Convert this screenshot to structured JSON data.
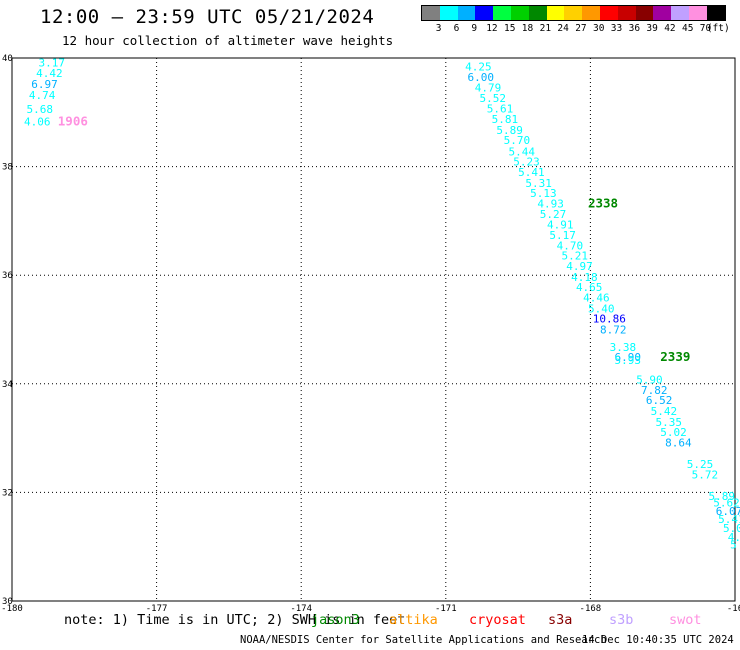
{
  "header": {
    "title": "12:00 – 23:59 UTC 05/21/2024",
    "subtitle": "12 hour collection of altimeter wave heights"
  },
  "color_scale": {
    "colors": [
      "#808080",
      "#00ffff",
      "#00b0ff",
      "#0000ff",
      "#00ff40",
      "#00d000",
      "#008800",
      "#ffff00",
      "#ffd000",
      "#ff9800",
      "#ff0000",
      "#c80000",
      "#880000",
      "#a000a0",
      "#c0a0ff",
      "#ff90e0",
      "#000000"
    ],
    "labels": [
      "3",
      "6",
      "9",
      "12",
      "15",
      "18",
      "21",
      "24",
      "27",
      "30",
      "33",
      "36",
      "39",
      "42",
      "45",
      "70",
      "(ft)"
    ]
  },
  "chart_data": {
    "type": "map",
    "x_axis": {
      "range": [
        -180,
        -165
      ],
      "ticks": [
        "-180",
        "-177",
        "-174",
        "-171",
        "-168",
        "-16"
      ]
    },
    "y_axis": {
      "range": [
        30,
        40
      ],
      "ticks": [
        "30",
        "32",
        "34",
        "36",
        "38",
        "40"
      ]
    },
    "grid": true,
    "wave_height_labels": [
      {
        "lon": -179.45,
        "lat": 39.92,
        "text": "3.17",
        "color": "#00ffff"
      },
      {
        "lon": -179.5,
        "lat": 39.72,
        "text": "4.42",
        "color": "#00ffff"
      },
      {
        "lon": -179.6,
        "lat": 39.52,
        "text": "6.97",
        "color": "#00b0ff"
      },
      {
        "lon": -179.65,
        "lat": 39.32,
        "text": "4.74",
        "color": "#00ffff"
      },
      {
        "lon": -179.7,
        "lat": 39.06,
        "text": "5.68",
        "color": "#00ffff"
      },
      {
        "lon": -179.75,
        "lat": 38.83,
        "text": "4.06",
        "color": "#00ffff"
      },
      {
        "lon": -179.05,
        "lat": 38.83,
        "text": "1906",
        "color": "#ff90e0",
        "pass": true
      },
      {
        "lon": -170.6,
        "lat": 39.84,
        "text": "4.25",
        "color": "#00ffff"
      },
      {
        "lon": -170.55,
        "lat": 39.65,
        "text": "6.00",
        "color": "#00b0ff"
      },
      {
        "lon": -170.4,
        "lat": 39.46,
        "text": "4.79",
        "color": "#00ffff"
      },
      {
        "lon": -170.3,
        "lat": 39.26,
        "text": "5.52",
        "color": "#00ffff"
      },
      {
        "lon": -170.15,
        "lat": 39.07,
        "text": "5.61",
        "color": "#00ffff"
      },
      {
        "lon": -170.05,
        "lat": 38.88,
        "text": "5.81",
        "color": "#00ffff"
      },
      {
        "lon": -169.95,
        "lat": 38.67,
        "text": "5.89",
        "color": "#00ffff"
      },
      {
        "lon": -169.8,
        "lat": 38.49,
        "text": "5.70",
        "color": "#00ffff"
      },
      {
        "lon": -169.7,
        "lat": 38.28,
        "text": "5.44",
        "color": "#00ffff"
      },
      {
        "lon": -169.6,
        "lat": 38.09,
        "text": "5.23",
        "color": "#00ffff"
      },
      {
        "lon": -169.5,
        "lat": 37.9,
        "text": "5.41",
        "color": "#00ffff"
      },
      {
        "lon": -169.35,
        "lat": 37.7,
        "text": "5.31",
        "color": "#00ffff"
      },
      {
        "lon": -169.25,
        "lat": 37.51,
        "text": "5.13",
        "color": "#00ffff"
      },
      {
        "lon": -169.1,
        "lat": 37.32,
        "text": "4.93",
        "color": "#00ffff"
      },
      {
        "lon": -168.05,
        "lat": 37.32,
        "text": "2338",
        "color": "#008800",
        "pass": true
      },
      {
        "lon": -169.05,
        "lat": 37.13,
        "text": "5.27",
        "color": "#00ffff"
      },
      {
        "lon": -168.9,
        "lat": 36.93,
        "text": "4.91",
        "color": "#00ffff"
      },
      {
        "lon": -168.85,
        "lat": 36.74,
        "text": "5.17",
        "color": "#00ffff"
      },
      {
        "lon": -168.7,
        "lat": 36.55,
        "text": "4.70",
        "color": "#00ffff"
      },
      {
        "lon": -168.6,
        "lat": 36.36,
        "text": "5.21",
        "color": "#00ffff"
      },
      {
        "lon": -168.5,
        "lat": 36.17,
        "text": "4.97",
        "color": "#00ffff"
      },
      {
        "lon": -168.4,
        "lat": 35.97,
        "text": "4.18",
        "color": "#00ffff"
      },
      {
        "lon": -168.3,
        "lat": 35.78,
        "text": "4.65",
        "color": "#00ffff"
      },
      {
        "lon": -168.15,
        "lat": 35.59,
        "text": "4.46",
        "color": "#00ffff"
      },
      {
        "lon": -168.05,
        "lat": 35.39,
        "text": "5.40",
        "color": "#00ffff"
      },
      {
        "lon": -167.95,
        "lat": 35.2,
        "text": "10.86",
        "color": "#0000ff"
      },
      {
        "lon": -167.8,
        "lat": 35.0,
        "text": "8.72",
        "color": "#00b0ff"
      },
      {
        "lon": -167.6,
        "lat": 34.68,
        "text": "3.38",
        "color": "#00ffff"
      },
      {
        "lon": -167.5,
        "lat": 34.49,
        "text": "6.90",
        "color": "#00b0ff"
      },
      {
        "lon": -167.5,
        "lat": 34.44,
        "text": "5.93",
        "color": "#00ffff"
      },
      {
        "lon": -166.55,
        "lat": 34.49,
        "text": "2339",
        "color": "#008800",
        "pass": true
      },
      {
        "lon": -167.05,
        "lat": 34.08,
        "text": "5.90",
        "color": "#00ffff"
      },
      {
        "lon": -166.95,
        "lat": 33.89,
        "text": "7.82",
        "color": "#00b0ff"
      },
      {
        "lon": -166.85,
        "lat": 33.7,
        "text": "6.52",
        "color": "#00b0ff"
      },
      {
        "lon": -166.75,
        "lat": 33.5,
        "text": "5.42",
        "color": "#00ffff"
      },
      {
        "lon": -166.65,
        "lat": 33.3,
        "text": "5.35",
        "color": "#00ffff"
      },
      {
        "lon": -166.55,
        "lat": 33.11,
        "text": "5.02",
        "color": "#00ffff"
      },
      {
        "lon": -166.45,
        "lat": 32.92,
        "text": "8.64",
        "color": "#00b0ff"
      },
      {
        "lon": -166.0,
        "lat": 32.52,
        "text": "5.25",
        "color": "#00ffff"
      },
      {
        "lon": -165.9,
        "lat": 32.33,
        "text": "5.72",
        "color": "#00ffff"
      },
      {
        "lon": -165.55,
        "lat": 31.93,
        "text": "5.89",
        "color": "#00ffff"
      },
      {
        "lon": -165.45,
        "lat": 31.81,
        "text": "5.62",
        "color": "#00ffff"
      },
      {
        "lon": -165.4,
        "lat": 31.66,
        "text": "6.07",
        "color": "#00b0ff"
      },
      {
        "lon": -165.35,
        "lat": 31.51,
        "text": "5.41",
        "color": "#00ffff"
      },
      {
        "lon": -165.25,
        "lat": 31.34,
        "text": "5.0",
        "color": "#00ffff"
      },
      {
        "lon": -165.15,
        "lat": 31.18,
        "text": "4.",
        "color": "#00ffff"
      },
      {
        "lon": -165.1,
        "lat": 31.04,
        "text": "5",
        "color": "#00ffff"
      }
    ]
  },
  "footer": {
    "note": "note:  1) Time is in UTC; 2) SWH is in feet",
    "missions": [
      {
        "name": "jason3",
        "color": "#008800"
      },
      {
        "name": "altika",
        "color": "#ff9800"
      },
      {
        "name": "cryosat",
        "color": "#ff0000"
      },
      {
        "name": "s3a",
        "color": "#880000"
      },
      {
        "name": "s3b",
        "color": "#c0a0ff"
      },
      {
        "name": "swot",
        "color": "#ff90e0"
      }
    ],
    "credit": "NOAA/NESDIS Center for Satellite Applications and Research",
    "timestamp": "14 Dec 10:40:35 UTC 2024"
  }
}
